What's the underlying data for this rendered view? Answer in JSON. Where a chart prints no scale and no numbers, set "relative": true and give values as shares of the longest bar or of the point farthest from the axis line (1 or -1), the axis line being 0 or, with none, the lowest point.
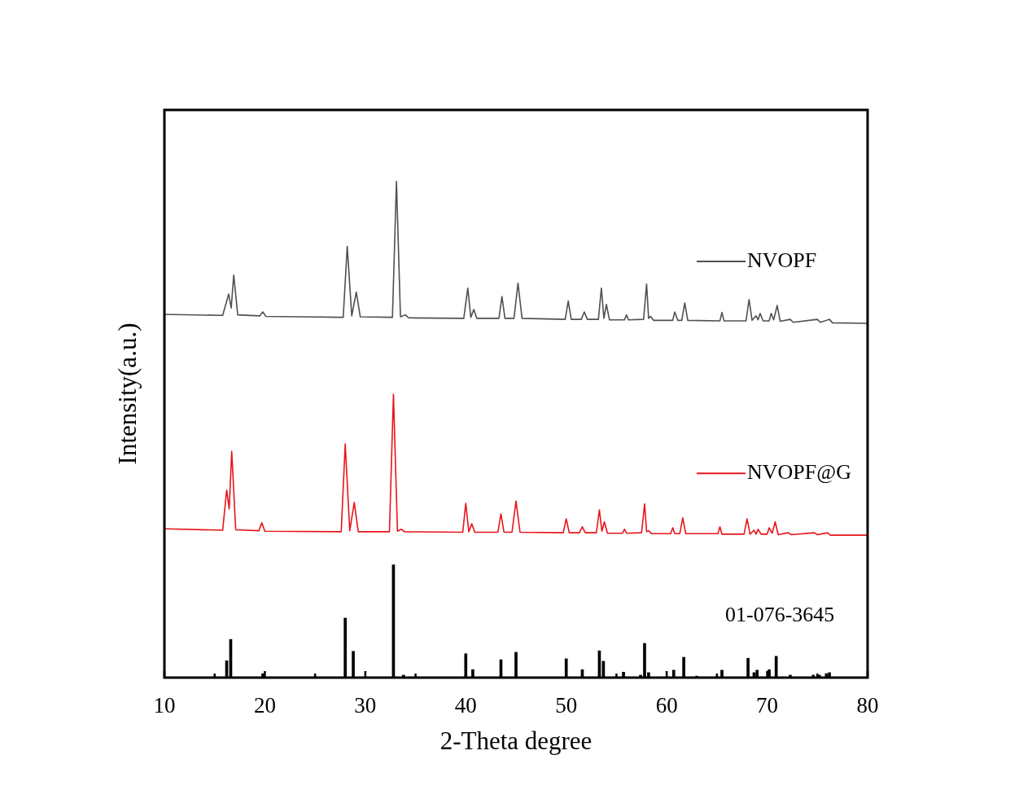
{
  "chart_data": {
    "type": "line",
    "relative": true,
    "xlabel": "2-Theta degree",
    "ylabel": "Intensity(a.u.)",
    "xlim": [
      10,
      80
    ],
    "xticks": [
      10,
      {
        "value": 15,
        "label": null
      },
      20,
      {
        "value": 25,
        "label": null
      },
      30,
      {
        "value": 35,
        "label": null
      },
      40,
      {
        "value": 45,
        "label": null
      },
      50,
      {
        "value": 55,
        "label": null
      },
      60,
      {
        "value": 65,
        "label": null
      },
      70,
      {
        "value": 75,
        "label": null
      },
      80
    ],
    "grid": false,
    "legend": "right",
    "marker": "none",
    "line_style": "solid",
    "series": [
      {
        "name": "NVOPF",
        "color": "#505050",
        "x": [
          10,
          15.8,
          16.4,
          16.65,
          16.9,
          17.3,
          19.5,
          19.8,
          20.1,
          23.8,
          27.8,
          28.2,
          28.65,
          29.1,
          29.5,
          32.7,
          33.1,
          33.5,
          34.0,
          34.3,
          39.8,
          40.2,
          40.5,
          40.8,
          41.1,
          43.3,
          43.6,
          43.9,
          44.8,
          45.2,
          45.6,
          49.9,
          50.2,
          50.5,
          51.5,
          51.8,
          52.1,
          53.2,
          53.5,
          53.75,
          54.0,
          54.3,
          55.8,
          56.0,
          56.2,
          57.7,
          58.0,
          58.2,
          58.4,
          58.7,
          60.6,
          60.8,
          61.1,
          61.5,
          61.8,
          62.1,
          65.3,
          65.5,
          65.7,
          67.9,
          68.2,
          68.5,
          68.9,
          69.1,
          69.3,
          69.6,
          70.2,
          70.4,
          70.65,
          71.0,
          71.3,
          72.3,
          72.6,
          75.0,
          75.3,
          76.2,
          76.5,
          80
        ],
        "values": [
          0.732,
          0.73,
          0.773,
          0.745,
          0.811,
          0.731,
          0.729,
          0.737,
          0.728,
          0.727,
          0.726,
          0.869,
          0.729,
          0.777,
          0.727,
          0.726,
          1.0,
          0.727,
          0.731,
          0.725,
          0.724,
          0.785,
          0.726,
          0.742,
          0.724,
          0.724,
          0.768,
          0.724,
          0.724,
          0.795,
          0.724,
          0.722,
          0.759,
          0.722,
          0.722,
          0.737,
          0.722,
          0.722,
          0.785,
          0.724,
          0.752,
          0.721,
          0.721,
          0.731,
          0.721,
          0.722,
          0.793,
          0.724,
          0.728,
          0.72,
          0.72,
          0.737,
          0.72,
          0.72,
          0.755,
          0.72,
          0.719,
          0.736,
          0.719,
          0.719,
          0.762,
          0.72,
          0.729,
          0.721,
          0.734,
          0.719,
          0.719,
          0.734,
          0.721,
          0.75,
          0.718,
          0.722,
          0.716,
          0.722,
          0.716,
          0.722,
          0.715,
          0.714
        ]
      },
      {
        "name": "NVOPF@G",
        "color": "#e8141c",
        "x": [
          10,
          15.8,
          16.2,
          16.45,
          16.7,
          17.1,
          19.4,
          19.7,
          20.0,
          27.6,
          28.0,
          28.45,
          28.9,
          29.3,
          32.4,
          32.8,
          33.2,
          33.6,
          33.9,
          39.7,
          40.0,
          40.3,
          40.6,
          40.9,
          43.2,
          43.5,
          43.8,
          44.6,
          45.0,
          45.4,
          49.7,
          50.0,
          50.3,
          51.3,
          51.6,
          51.9,
          53.0,
          53.3,
          53.55,
          53.8,
          54.1,
          55.6,
          55.8,
          56.0,
          57.5,
          57.8,
          58.0,
          58.2,
          58.5,
          60.4,
          60.6,
          60.8,
          61.3,
          61.6,
          61.9,
          65.1,
          65.3,
          65.5,
          67.7,
          68.0,
          68.3,
          68.7,
          68.9,
          69.1,
          69.4,
          70.0,
          70.2,
          70.5,
          70.8,
          71.1,
          72.1,
          72.4,
          74.7,
          75.0,
          76.0,
          76.3,
          80
        ],
        "values": [
          0.3,
          0.297,
          0.378,
          0.34,
          0.456,
          0.298,
          0.296,
          0.312,
          0.295,
          0.294,
          0.471,
          0.296,
          0.353,
          0.294,
          0.294,
          0.571,
          0.295,
          0.299,
          0.294,
          0.293,
          0.351,
          0.294,
          0.31,
          0.293,
          0.293,
          0.33,
          0.293,
          0.293,
          0.356,
          0.293,
          0.292,
          0.32,
          0.292,
          0.292,
          0.304,
          0.292,
          0.292,
          0.338,
          0.295,
          0.314,
          0.291,
          0.291,
          0.299,
          0.291,
          0.292,
          0.35,
          0.294,
          0.296,
          0.29,
          0.29,
          0.302,
          0.29,
          0.29,
          0.322,
          0.29,
          0.29,
          0.304,
          0.289,
          0.289,
          0.32,
          0.289,
          0.297,
          0.289,
          0.299,
          0.289,
          0.289,
          0.302,
          0.291,
          0.314,
          0.288,
          0.292,
          0.288,
          0.292,
          0.288,
          0.292,
          0.287,
          0.287
        ]
      },
      {
        "name": "01-076-3645",
        "type": "bar",
        "color": "#000000",
        "x": [
          16.2,
          16.6,
          19.8,
          28.0,
          28.8,
          32.8,
          33.8,
          40.0,
          40.7,
          43.5,
          45.0,
          50.0,
          51.6,
          53.3,
          53.7,
          55.7,
          57.4,
          57.8,
          58.2,
          60.7,
          61.7,
          63.0,
          65.5,
          68.1,
          68.7,
          69.0,
          70.2,
          70.9,
          72.3,
          74.6,
          75.2,
          75.9,
          76.2
        ],
        "values": [
          0.034,
          0.077,
          0.008,
          0.12,
          0.053,
          0.227,
          0.005,
          0.048,
          0.016,
          0.036,
          0.051,
          0.038,
          0.016,
          0.054,
          0.033,
          0.011,
          0.005,
          0.069,
          0.01,
          0.015,
          0.041,
          0.003,
          0.015,
          0.039,
          0.01,
          0.015,
          0.016,
          0.043,
          0.005,
          0.005,
          0.005,
          0.008,
          0.01
        ]
      }
    ]
  }
}
